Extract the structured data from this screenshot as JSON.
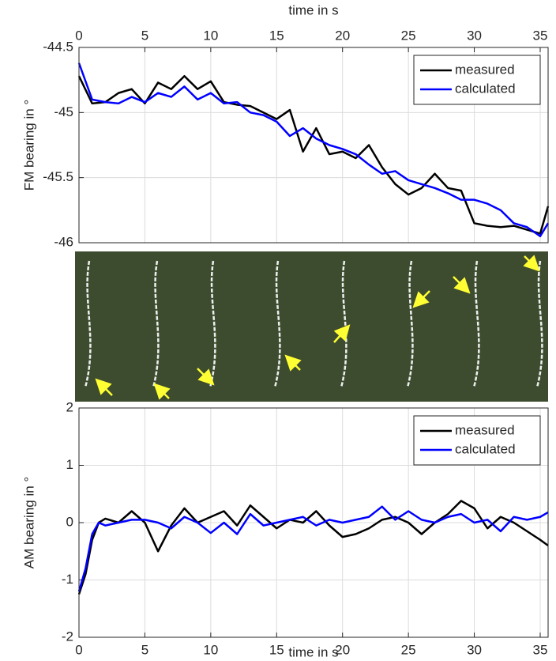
{
  "chart_data": [
    {
      "type": "line",
      "xlabel": "time in s",
      "ylabel": "FM bearing in °",
      "xaxis_location": "top",
      "xlim": [
        0,
        35.6
      ],
      "xticks": [
        0,
        5,
        10,
        15,
        20,
        25,
        30,
        35
      ],
      "ylim": [
        -46,
        -44.5
      ],
      "yticks": [
        -44.5,
        -45,
        -45.5,
        -46
      ],
      "grid": true,
      "legend": "upper right",
      "x": [
        0,
        1,
        2,
        3,
        4,
        5,
        6,
        7,
        8,
        9,
        10,
        11,
        12,
        13,
        14,
        15,
        16,
        17,
        18,
        19,
        20,
        21,
        22,
        23,
        24,
        25,
        26,
        27,
        28,
        29,
        30,
        31,
        32,
        33,
        34,
        35,
        35.6
      ],
      "series": [
        {
          "name": "measured",
          "color": "#000000",
          "values": [
            -44.72,
            -44.93,
            -44.92,
            -44.85,
            -44.82,
            -44.93,
            -44.77,
            -44.82,
            -44.72,
            -44.82,
            -44.76,
            -44.92,
            -44.94,
            -44.95,
            -45.0,
            -45.05,
            -44.98,
            -45.3,
            -45.12,
            -45.32,
            -45.3,
            -45.35,
            -45.25,
            -45.42,
            -45.55,
            -45.63,
            -45.58,
            -45.47,
            -45.58,
            -45.6,
            -45.85,
            -45.87,
            -45.88,
            -45.87,
            -45.9,
            -45.93,
            -45.72
          ]
        },
        {
          "name": "calculated",
          "color": "#0000ff",
          "values": [
            -44.62,
            -44.9,
            -44.92,
            -44.93,
            -44.88,
            -44.92,
            -44.85,
            -44.88,
            -44.8,
            -44.9,
            -44.85,
            -44.93,
            -44.92,
            -45.0,
            -45.02,
            -45.07,
            -45.18,
            -45.12,
            -45.2,
            -45.25,
            -45.28,
            -45.32,
            -45.4,
            -45.47,
            -45.45,
            -45.52,
            -45.55,
            -45.58,
            -45.62,
            -45.67,
            -45.67,
            -45.7,
            -45.75,
            -45.85,
            -45.88,
            -45.95,
            -45.85
          ]
        }
      ]
    },
    {
      "type": "line",
      "xlabel": "time in s",
      "ylabel": "AM bearing in °",
      "xaxis_location": "bottom",
      "xlim": [
        0,
        35.6
      ],
      "xticks": [
        0,
        5,
        10,
        15,
        20,
        25,
        30,
        35
      ],
      "ylim": [
        -2,
        2
      ],
      "yticks": [
        -2,
        -1,
        0,
        1,
        2
      ],
      "grid": true,
      "legend": "upper right",
      "x": [
        0,
        0.5,
        1,
        1.5,
        2,
        3,
        4,
        5,
        6,
        7,
        8,
        9,
        10,
        11,
        12,
        13,
        14,
        15,
        16,
        17,
        18,
        19,
        20,
        21,
        22,
        23,
        24,
        25,
        26,
        27,
        28,
        29,
        30,
        31,
        32,
        33,
        34,
        35,
        35.6
      ],
      "series": [
        {
          "name": "measured",
          "color": "#000000",
          "values": [
            -1.25,
            -0.9,
            -0.3,
            0.0,
            0.07,
            0.0,
            0.2,
            0.0,
            -0.5,
            -0.05,
            0.25,
            0.0,
            0.1,
            0.2,
            -0.05,
            0.3,
            0.1,
            -0.1,
            0.05,
            0.0,
            0.2,
            -0.05,
            -0.25,
            -0.2,
            -0.1,
            0.05,
            0.1,
            0.0,
            -0.2,
            0.0,
            0.15,
            0.38,
            0.25,
            -0.1,
            0.1,
            0.0,
            -0.15,
            -0.3,
            -0.4
          ]
        },
        {
          "name": "calculated",
          "color": "#0000ff",
          "values": [
            -1.2,
            -0.8,
            -0.2,
            0.0,
            -0.05,
            0.0,
            0.05,
            0.05,
            0.0,
            -0.1,
            0.1,
            0.0,
            -0.18,
            0.0,
            -0.2,
            0.15,
            -0.05,
            0.0,
            0.05,
            0.1,
            -0.05,
            0.05,
            0.0,
            0.05,
            0.1,
            0.28,
            0.05,
            0.2,
            0.05,
            0.0,
            0.1,
            0.15,
            0.0,
            0.05,
            -0.15,
            0.1,
            0.05,
            0.1,
            0.18
          ]
        }
      ]
    }
  ]
}
